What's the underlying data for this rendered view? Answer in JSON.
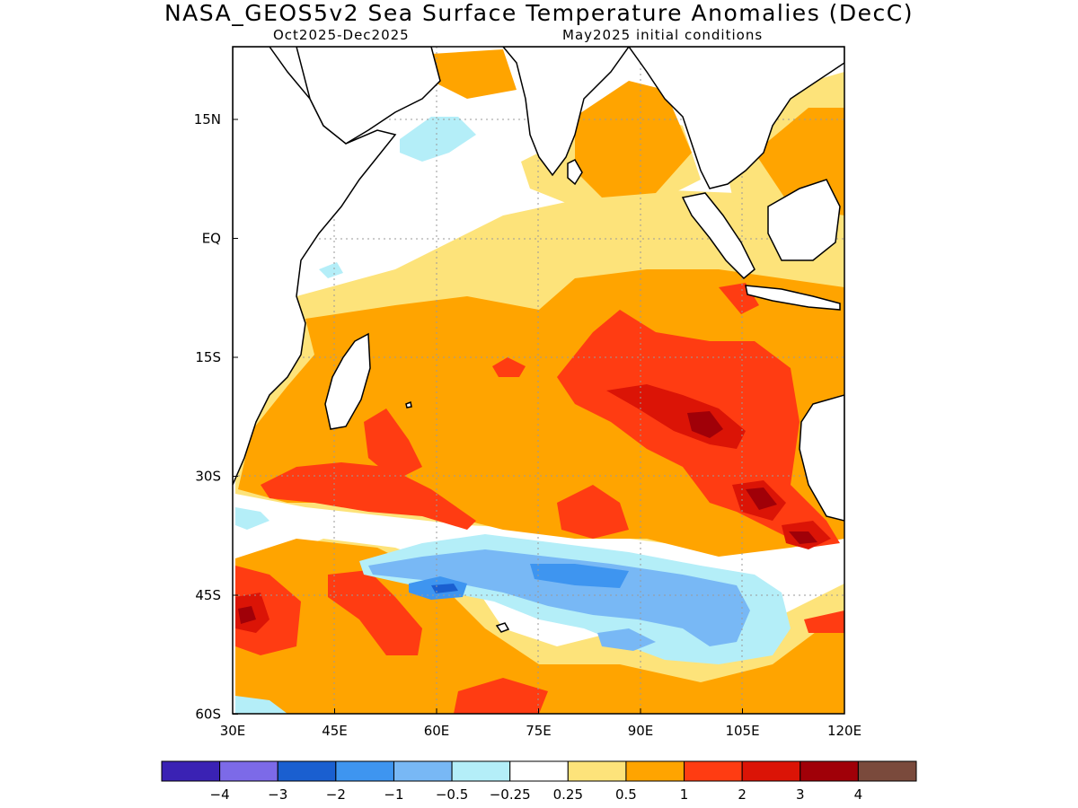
{
  "header": {
    "title": "NASA_GEOS5v2 Sea Surface Temperature Anomalies (DecC)",
    "period": "Oct2025-Dec2025",
    "init": "May2025 initial conditions"
  },
  "map": {
    "lon_range": [
      30,
      120
    ],
    "lat_range": [
      -60,
      24
    ],
    "lon_ticks": [
      "30E",
      "45E",
      "60E",
      "75E",
      "90E",
      "105E",
      "120E"
    ],
    "lat_ticks": [
      "15N",
      "EQ",
      "15S",
      "30S",
      "45S",
      "60S"
    ]
  },
  "colorbar": {
    "colors": [
      "#3a22b4",
      "#7c6ae8",
      "#1a5fd0",
      "#3e95f0",
      "#78b8f5",
      "#b4eef8",
      "#ffffff",
      "#fde37a",
      "#ffa400",
      "#ff3c12",
      "#db1406",
      "#a00008",
      "#7a4a3c"
    ],
    "labels": [
      "-4",
      "-3",
      "-2",
      "-1",
      "-0.5",
      "-0.25",
      "0.25",
      "0.5",
      "1",
      "2",
      "3",
      "4"
    ]
  }
}
